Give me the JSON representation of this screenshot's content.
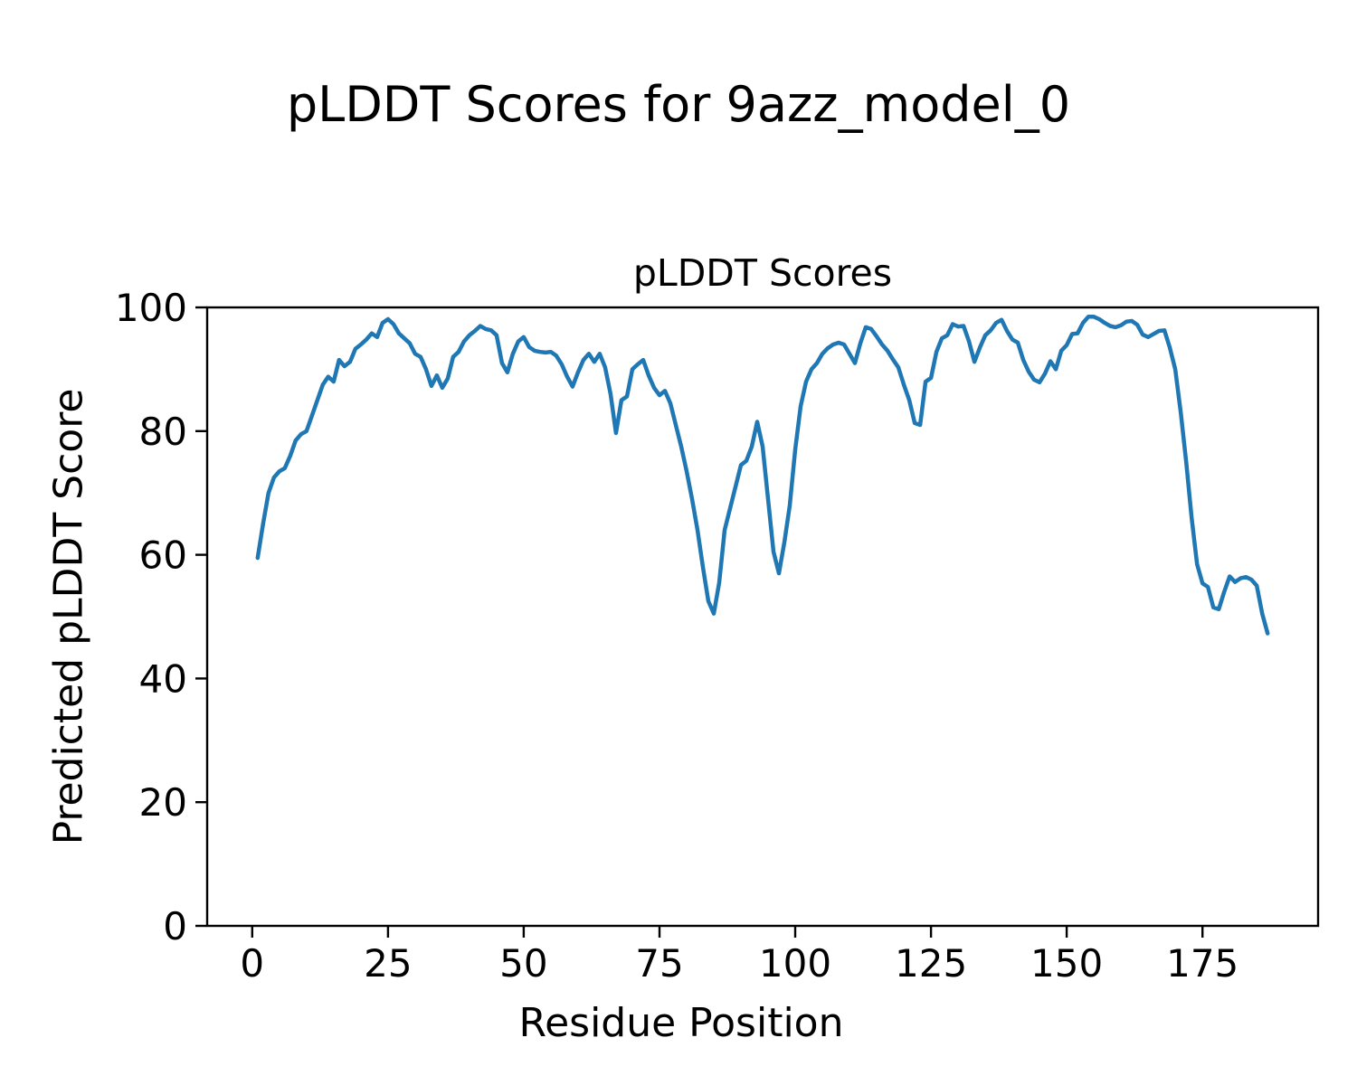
{
  "figure": {
    "title": "pLDDT Scores for 9azz_model_0"
  },
  "chart": {
    "title": "pLDDT Scores",
    "xlabel": "Residue Position",
    "ylabel": "Predicted pLDDT Score"
  },
  "chart_data": {
    "type": "line",
    "title": "pLDDT Scores",
    "xlabel": "Residue Position",
    "ylabel": "Predicted pLDDT Score",
    "line_color": "#1f77b4",
    "line_width": 4.5,
    "grid": false,
    "legend": "none",
    "xlim": [
      -8.3,
      196.3
    ],
    "ylim": [
      0,
      100
    ],
    "x_ticks": [
      0,
      25,
      50,
      75,
      100,
      125,
      150,
      175
    ],
    "y_ticks": [
      0,
      20,
      40,
      60,
      80,
      100
    ],
    "x_start": 1,
    "x_step": 1,
    "values": [
      59.5,
      65.0,
      70.0,
      72.5,
      73.5,
      74.0,
      76.0,
      78.5,
      79.5,
      80.0,
      82.5,
      85.0,
      87.5,
      88.8,
      88.0,
      91.5,
      90.5,
      91.2,
      93.3,
      94.0,
      94.8,
      95.8,
      95.2,
      97.5,
      98.1,
      97.3,
      95.8,
      95.0,
      94.2,
      92.5,
      92.0,
      90.0,
      87.3,
      89.0,
      87.0,
      88.5,
      92.0,
      92.8,
      94.5,
      95.5,
      96.2,
      97.0,
      96.5,
      96.3,
      95.5,
      91.0,
      89.5,
      92.5,
      94.5,
      95.2,
      93.6,
      93.0,
      92.8,
      92.7,
      92.8,
      92.2,
      90.8,
      88.8,
      87.2,
      89.5,
      91.5,
      92.5,
      91.2,
      92.5,
      90.3,
      86.0,
      79.7,
      85.0,
      85.6,
      90.0,
      90.8,
      91.5,
      89.0,
      87.0,
      85.8,
      86.5,
      84.5,
      81.0,
      77.5,
      73.5,
      69.0,
      64.0,
      58.0,
      52.5,
      50.5,
      55.5,
      64.0,
      67.5,
      71.0,
      74.5,
      75.2,
      77.5,
      81.5,
      77.5,
      69.0,
      60.5,
      57.0,
      62.0,
      68.0,
      77.0,
      84.0,
      88.0,
      90.0,
      91.0,
      92.5,
      93.4,
      94.0,
      94.3,
      94.0,
      92.5,
      91.0,
      94.2,
      96.8,
      96.5,
      95.3,
      94.0,
      93.0,
      91.6,
      90.3,
      87.5,
      85.0,
      81.3,
      81.0,
      88.0,
      88.6,
      92.8,
      95.0,
      95.5,
      97.3,
      96.9,
      97.0,
      94.5,
      91.2,
      93.5,
      95.5,
      96.3,
      97.5,
      98.0,
      96.2,
      94.8,
      94.3,
      91.5,
      89.6,
      88.3,
      87.9,
      89.3,
      91.3,
      90.0,
      93.0,
      93.9,
      95.7,
      95.8,
      97.5,
      98.5,
      98.5,
      98.1,
      97.5,
      97.0,
      96.8,
      97.1,
      97.7,
      97.8,
      97.2,
      95.6,
      95.2,
      95.7,
      96.2,
      96.3,
      93.5,
      90.0,
      83.0,
      75.0,
      66.0,
      58.5,
      55.4,
      54.8,
      51.5,
      51.2,
      54.0,
      56.5,
      55.6,
      56.2,
      56.4,
      56.0,
      55.0,
      50.5,
      47.3
    ]
  }
}
